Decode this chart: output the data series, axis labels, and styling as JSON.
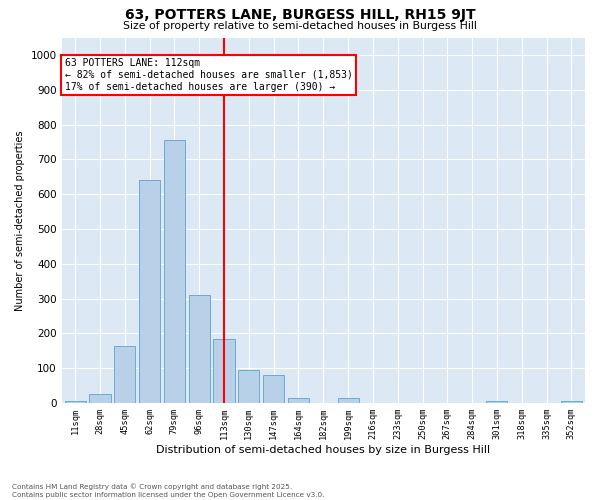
{
  "title": "63, POTTERS LANE, BURGESS HILL, RH15 9JT",
  "subtitle": "Size of property relative to semi-detached houses in Burgess Hill",
  "xlabel": "Distribution of semi-detached houses by size in Burgess Hill",
  "ylabel": "Number of semi-detached properties",
  "bin_labels": [
    "11sqm",
    "28sqm",
    "45sqm",
    "62sqm",
    "79sqm",
    "96sqm",
    "113sqm",
    "130sqm",
    "147sqm",
    "164sqm",
    "182sqm",
    "199sqm",
    "216sqm",
    "233sqm",
    "250sqm",
    "267sqm",
    "284sqm",
    "301sqm",
    "318sqm",
    "335sqm",
    "352sqm"
  ],
  "bar_heights": [
    5,
    25,
    165,
    640,
    755,
    310,
    185,
    95,
    80,
    15,
    0,
    15,
    0,
    0,
    0,
    0,
    0,
    5,
    0,
    0,
    5
  ],
  "bar_color": "#b8d0e8",
  "bar_edge_color": "#6aaad4",
  "red_line_index": 6,
  "annotation_title": "63 POTTERS LANE: 112sqm",
  "annotation_line1": "← 82% of semi-detached houses are smaller (1,853)",
  "annotation_line2": "17% of semi-detached houses are larger (390) →",
  "ylim": [
    0,
    1050
  ],
  "yticks": [
    0,
    100,
    200,
    300,
    400,
    500,
    600,
    700,
    800,
    900,
    1000
  ],
  "background_color": "#dce9f5",
  "footer_line1": "Contains HM Land Registry data © Crown copyright and database right 2025.",
  "footer_line2": "Contains public sector information licensed under the Open Government Licence v3.0."
}
